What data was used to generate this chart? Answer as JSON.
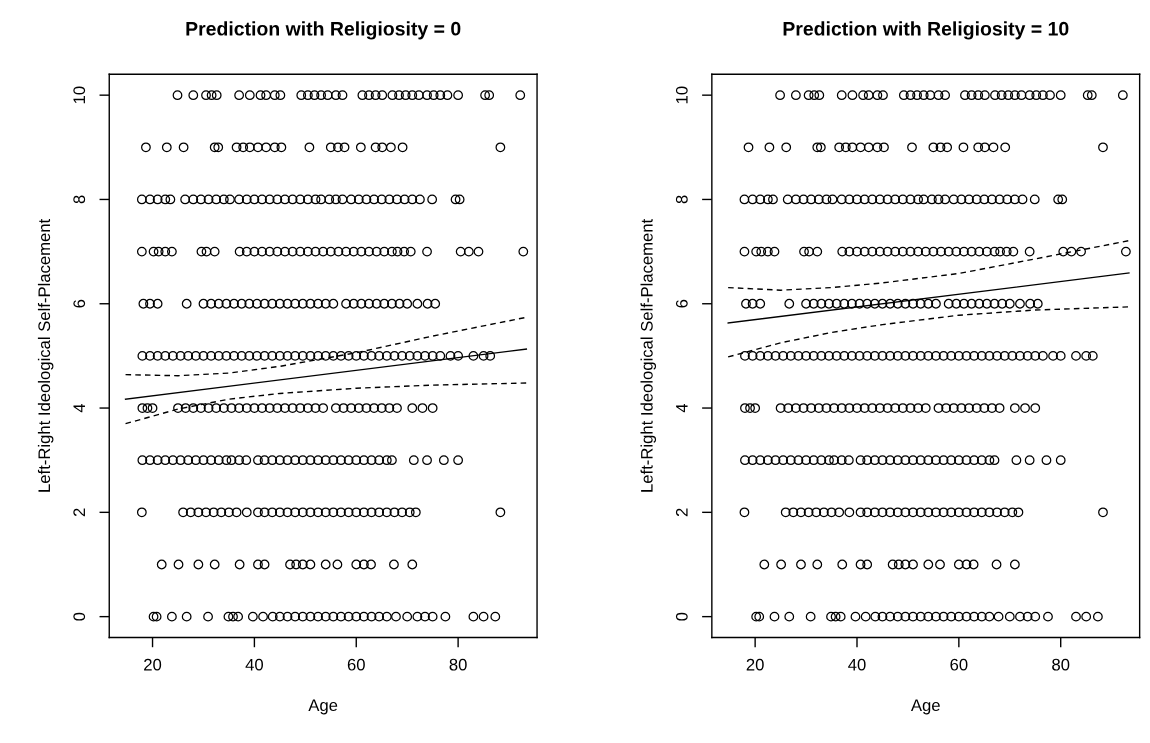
{
  "chart_data": [
    {
      "type": "scatter",
      "title": "Prediction with Religiosity = 0",
      "xlabel": "Age",
      "ylabel": "Left-Right Ideological Self-Placement",
      "xlim": [
        11.5,
        95.5
      ],
      "ylim": [
        -0.4,
        10.4
      ],
      "xticks": [
        20,
        40,
        60,
        80
      ],
      "yticks": [
        0,
        2,
        4,
        6,
        8,
        10
      ],
      "grid": false,
      "legend": false,
      "series": [
        {
          "type": "scatter",
          "color": "#000000",
          "marker": "circle",
          "x": [
            24.9,
            28,
            30.5,
            31.6,
            32.6,
            37,
            39.1,
            41.2,
            42.3,
            44,
            45.1,
            49.2,
            50.5,
            51.8,
            53.1,
            54.4,
            56,
            57.3,
            61.2,
            62.5,
            63.8,
            65.1,
            67.1,
            68.4,
            69.7,
            71,
            72.3,
            73.9,
            75.2,
            76.5,
            77.9,
            80,
            85.3,
            86.1,
            92.2,
            18.7,
            22.8,
            26.1,
            32.2,
            32.9,
            36.5,
            37.8,
            39.1,
            40.7,
            42.3,
            44,
            45.3,
            50.8,
            55,
            56.4,
            57.7,
            60.9,
            63.8,
            65.1,
            66.8,
            69.1,
            88.3,
            17.9,
            19.5,
            21,
            22.5,
            23.5,
            26.4,
            28,
            29.5,
            31,
            32.5,
            34,
            35.2,
            37,
            38.5,
            40,
            41.5,
            43,
            44.5,
            46,
            47.5,
            49,
            50.5,
            52,
            53.1,
            54.7,
            56,
            57.3,
            59,
            60.5,
            62,
            63.5,
            65,
            66.5,
            68,
            69.5,
            71,
            72.5,
            74.9,
            79.5,
            80.3,
            17.9,
            20.2,
            21.2,
            22.5,
            23.8,
            29.6,
            30.6,
            32.2,
            37.1,
            38.5,
            40,
            41.5,
            43,
            44.5,
            46,
            47.5,
            49,
            50.5,
            52,
            53.5,
            55,
            56.5,
            58,
            59.5,
            61,
            62.5,
            64,
            65.5,
            67,
            68.1,
            69.4,
            70.7,
            73.9,
            80.5,
            82.1,
            84,
            92.8,
            18.2,
            19.5,
            21,
            26.7,
            30,
            31.5,
            33,
            34.5,
            36,
            37.5,
            39,
            40.5,
            42,
            43.5,
            45,
            46.5,
            48,
            49.5,
            51,
            52.5,
            54,
            55.5,
            58,
            59.5,
            61,
            62.5,
            64,
            65.5,
            67,
            68.5,
            70,
            72,
            74,
            75.5,
            18,
            19.5,
            21,
            22.5,
            24,
            25.5,
            27,
            28.5,
            30,
            31.5,
            33,
            34.5,
            36,
            37.5,
            39,
            40.5,
            42,
            43.5,
            45,
            46.5,
            48,
            49.5,
            51,
            52.5,
            54,
            55.5,
            57,
            58.5,
            60,
            61.5,
            63,
            64.5,
            66,
            67.5,
            69,
            70.5,
            72,
            73.5,
            75,
            76.5,
            78.5,
            80,
            83,
            85,
            86.3,
            18,
            19,
            20,
            25,
            26.5,
            28,
            29.5,
            31,
            32.5,
            34,
            35.5,
            37,
            38.5,
            40,
            41.5,
            43,
            44.5,
            46,
            47.5,
            49,
            50.5,
            52,
            53.5,
            56,
            57.5,
            59,
            60.5,
            62,
            63.5,
            65,
            66.5,
            68,
            71,
            73,
            75,
            18,
            19.5,
            21,
            22.5,
            24,
            25.5,
            27,
            28.5,
            30,
            31.5,
            33,
            34.5,
            35.5,
            37,
            38.4,
            40.7,
            42,
            43.5,
            45,
            46.5,
            48,
            49.5,
            51,
            52.5,
            54,
            55.5,
            57,
            58.5,
            60,
            61.5,
            63,
            64.5,
            66,
            67,
            71.3,
            73.9,
            77.2,
            80,
            17.9,
            26,
            27.5,
            29,
            30.5,
            32,
            33.5,
            35,
            36.5,
            38.5,
            40.7,
            42,
            43.5,
            45,
            46.5,
            48,
            49.5,
            51,
            52.5,
            54,
            55.5,
            57,
            58.5,
            60,
            61.5,
            63,
            64.5,
            66,
            67.5,
            69,
            70.5,
            71.7,
            88.3,
            21.8,
            25.1,
            29,
            32.2,
            37.1,
            40.7,
            42,
            47,
            48.2,
            49.5,
            51,
            54,
            56.3,
            60,
            61.5,
            62.9,
            67.4,
            71,
            20.2,
            20.8,
            23.8,
            26.7,
            30.9,
            34.9,
            35.8,
            36.8,
            39.7,
            41.7,
            43.6,
            45,
            46.5,
            48,
            49.5,
            51,
            52.5,
            54,
            55.5,
            57,
            58.5,
            60,
            61.5,
            63,
            64.5,
            66,
            67.8,
            70,
            72,
            73.5,
            75,
            77.5,
            83,
            85,
            87.3
          ],
          "values": [
            10,
            10,
            10,
            10,
            10,
            10,
            10,
            10,
            10,
            10,
            10,
            10,
            10,
            10,
            10,
            10,
            10,
            10,
            10,
            10,
            10,
            10,
            10,
            10,
            10,
            10,
            10,
            10,
            10,
            10,
            10,
            10,
            10,
            10,
            10,
            9,
            9,
            9,
            9,
            9,
            9,
            9,
            9,
            9,
            9,
            9,
            9,
            9,
            9,
            9,
            9,
            9,
            9,
            9,
            9,
            9,
            9,
            8,
            8,
            8,
            8,
            8,
            8,
            8,
            8,
            8,
            8,
            8,
            8,
            8,
            8,
            8,
            8,
            8,
            8,
            8,
            8,
            8,
            8,
            8,
            8,
            8,
            8,
            8,
            8,
            8,
            8,
            8,
            8,
            8,
            8,
            8,
            8,
            8,
            8,
            8,
            8,
            7,
            7,
            7,
            7,
            7,
            7,
            7,
            7,
            7,
            7,
            7,
            7,
            7,
            7,
            7,
            7,
            7,
            7,
            7,
            7,
            7,
            7,
            7,
            7,
            7,
            7,
            7,
            7,
            7,
            7,
            7,
            7,
            7,
            7,
            7,
            7,
            7,
            6,
            6,
            6,
            6,
            6,
            6,
            6,
            6,
            6,
            6,
            6,
            6,
            6,
            6,
            6,
            6,
            6,
            6,
            6,
            6,
            6,
            6,
            6,
            6,
            6,
            6,
            6,
            6,
            6,
            6,
            6,
            6,
            6,
            6,
            5,
            5,
            5,
            5,
            5,
            5,
            5,
            5,
            5,
            5,
            5,
            5,
            5,
            5,
            5,
            5,
            5,
            5,
            5,
            5,
            5,
            5,
            5,
            5,
            5,
            5,
            5,
            5,
            5,
            5,
            5,
            5,
            5,
            5,
            5,
            5,
            5,
            5,
            5,
            5,
            5,
            5,
            5,
            5,
            5,
            4,
            4,
            4,
            4,
            4,
            4,
            4,
            4,
            4,
            4,
            4,
            4,
            4,
            4,
            4,
            4,
            4,
            4,
            4,
            4,
            4,
            4,
            4,
            4,
            4,
            4,
            4,
            4,
            4,
            4,
            4,
            4,
            4,
            4,
            4,
            3,
            3,
            3,
            3,
            3,
            3,
            3,
            3,
            3,
            3,
            3,
            3,
            3,
            3,
            3,
            3,
            3,
            3,
            3,
            3,
            3,
            3,
            3,
            3,
            3,
            3,
            3,
            3,
            3,
            3,
            3,
            3,
            3,
            3,
            3,
            3,
            3,
            3,
            2,
            2,
            2,
            2,
            2,
            2,
            2,
            2,
            2,
            2,
            2,
            2,
            2,
            2,
            2,
            2,
            2,
            2,
            2,
            2,
            2,
            2,
            2,
            2,
            2,
            2,
            2,
            2,
            2,
            2,
            2,
            2,
            2,
            1,
            1,
            1,
            1,
            1,
            1,
            1,
            1,
            1,
            1,
            1,
            1,
            1,
            1,
            1,
            1,
            1,
            1,
            0,
            0,
            0,
            0,
            0,
            0,
            0,
            0,
            0,
            0,
            0,
            0,
            0,
            0,
            0,
            0,
            0,
            0,
            0,
            0,
            0,
            0,
            0,
            0,
            0,
            0,
            0,
            0,
            0,
            0,
            0,
            0,
            0,
            0,
            0
          ]
        },
        {
          "type": "line",
          "color": "#000000",
          "line_style": "solid",
          "x": [
            14.7,
            93.4
          ],
          "values": [
            4.17,
            5.13
          ]
        },
        {
          "type": "line",
          "color": "#000000",
          "line_style": "dashed",
          "x": [
            14.7,
            25,
            35,
            45,
            60,
            75,
            93.4
          ],
          "values": [
            4.64,
            4.62,
            4.67,
            4.8,
            5.06,
            5.38,
            5.74
          ]
        },
        {
          "type": "line",
          "color": "#000000",
          "line_style": "dashed",
          "x": [
            14.7,
            25,
            35,
            45,
            60,
            75,
            93.4
          ],
          "values": [
            3.7,
            3.98,
            4.17,
            4.28,
            4.38,
            4.44,
            4.48
          ]
        }
      ]
    },
    {
      "type": "scatter",
      "title": "Prediction with Religiosity = 10",
      "xlabel": "Age",
      "ylabel": "Left-Right Ideological Self-Placement",
      "xlim": [
        11.5,
        95.5
      ],
      "ylim": [
        -0.4,
        10.4
      ],
      "xticks": [
        20,
        40,
        60,
        80
      ],
      "yticks": [
        0,
        2,
        4,
        6,
        8,
        10
      ],
      "grid": false,
      "legend": false,
      "series": [
        {
          "type": "scatter",
          "color": "#000000",
          "marker": "circle",
          "x": [
            24.9,
            28,
            30.5,
            31.6,
            32.6,
            37,
            39.1,
            41.2,
            42.3,
            44,
            45.1,
            49.2,
            50.5,
            51.8,
            53.1,
            54.4,
            56,
            57.3,
            61.2,
            62.5,
            63.8,
            65.1,
            67.1,
            68.4,
            69.7,
            71,
            72.3,
            73.9,
            75.2,
            76.5,
            77.9,
            80,
            85.3,
            86.1,
            92.2,
            18.7,
            22.8,
            26.1,
            32.2,
            32.9,
            36.5,
            37.8,
            39.1,
            40.7,
            42.3,
            44,
            45.3,
            50.8,
            55,
            56.4,
            57.7,
            60.9,
            63.8,
            65.1,
            66.8,
            69.1,
            88.3,
            17.9,
            19.5,
            21,
            22.5,
            23.5,
            26.4,
            28,
            29.5,
            31,
            32.5,
            34,
            35.2,
            37,
            38.5,
            40,
            41.5,
            43,
            44.5,
            46,
            47.5,
            49,
            50.5,
            52,
            53.1,
            54.7,
            56,
            57.3,
            59,
            60.5,
            62,
            63.5,
            65,
            66.5,
            68,
            69.5,
            71,
            72.5,
            74.9,
            79.5,
            80.3,
            17.9,
            20.2,
            21.2,
            22.5,
            23.8,
            29.6,
            30.6,
            32.2,
            37.1,
            38.5,
            40,
            41.5,
            43,
            44.5,
            46,
            47.5,
            49,
            50.5,
            52,
            53.5,
            55,
            56.5,
            58,
            59.5,
            61,
            62.5,
            64,
            65.5,
            67,
            68.1,
            69.4,
            70.7,
            73.9,
            80.5,
            82.1,
            84,
            92.8,
            18.2,
            19.5,
            21,
            26.7,
            30,
            31.5,
            33,
            34.5,
            36,
            37.5,
            39,
            40.5,
            42,
            43.5,
            45,
            46.5,
            48,
            49.5,
            51,
            52.5,
            54,
            55.5,
            58,
            59.5,
            61,
            62.5,
            64,
            65.5,
            67,
            68.5,
            70,
            72,
            74,
            75.5,
            18,
            19.5,
            21,
            22.5,
            24,
            25.5,
            27,
            28.5,
            30,
            31.5,
            33,
            34.5,
            36,
            37.5,
            39,
            40.5,
            42,
            43.5,
            45,
            46.5,
            48,
            49.5,
            51,
            52.5,
            54,
            55.5,
            57,
            58.5,
            60,
            61.5,
            63,
            64.5,
            66,
            67.5,
            69,
            70.5,
            72,
            73.5,
            75,
            76.5,
            78.5,
            80,
            83,
            85,
            86.3,
            18,
            19,
            20,
            25,
            26.5,
            28,
            29.5,
            31,
            32.5,
            34,
            35.5,
            37,
            38.5,
            40,
            41.5,
            43,
            44.5,
            46,
            47.5,
            49,
            50.5,
            52,
            53.5,
            56,
            57.5,
            59,
            60.5,
            62,
            63.5,
            65,
            66.5,
            68,
            71,
            73,
            75,
            18,
            19.5,
            21,
            22.5,
            24,
            25.5,
            27,
            28.5,
            30,
            31.5,
            33,
            34.5,
            35.5,
            37,
            38.4,
            40.7,
            42,
            43.5,
            45,
            46.5,
            48,
            49.5,
            51,
            52.5,
            54,
            55.5,
            57,
            58.5,
            60,
            61.5,
            63,
            64.5,
            66,
            67,
            71.3,
            73.9,
            77.2,
            80,
            17.9,
            26,
            27.5,
            29,
            30.5,
            32,
            33.5,
            35,
            36.5,
            38.5,
            40.7,
            42,
            43.5,
            45,
            46.5,
            48,
            49.5,
            51,
            52.5,
            54,
            55.5,
            57,
            58.5,
            60,
            61.5,
            63,
            64.5,
            66,
            67.5,
            69,
            70.5,
            71.7,
            88.3,
            21.8,
            25.1,
            29,
            32.2,
            37.1,
            40.7,
            42,
            47,
            48.2,
            49.5,
            51,
            54,
            56.3,
            60,
            61.5,
            62.9,
            67.4,
            71,
            20.2,
            20.8,
            23.8,
            26.7,
            30.9,
            34.9,
            35.8,
            36.8,
            39.7,
            41.7,
            43.6,
            45,
            46.5,
            48,
            49.5,
            51,
            52.5,
            54,
            55.5,
            57,
            58.5,
            60,
            61.5,
            63,
            64.5,
            66,
            67.8,
            70,
            72,
            73.5,
            75,
            77.5,
            83,
            85,
            87.3
          ],
          "values": [
            10,
            10,
            10,
            10,
            10,
            10,
            10,
            10,
            10,
            10,
            10,
            10,
            10,
            10,
            10,
            10,
            10,
            10,
            10,
            10,
            10,
            10,
            10,
            10,
            10,
            10,
            10,
            10,
            10,
            10,
            10,
            10,
            10,
            10,
            10,
            9,
            9,
            9,
            9,
            9,
            9,
            9,
            9,
            9,
            9,
            9,
            9,
            9,
            9,
            9,
            9,
            9,
            9,
            9,
            9,
            9,
            9,
            8,
            8,
            8,
            8,
            8,
            8,
            8,
            8,
            8,
            8,
            8,
            8,
            8,
            8,
            8,
            8,
            8,
            8,
            8,
            8,
            8,
            8,
            8,
            8,
            8,
            8,
            8,
            8,
            8,
            8,
            8,
            8,
            8,
            8,
            8,
            8,
            8,
            8,
            8,
            8,
            7,
            7,
            7,
            7,
            7,
            7,
            7,
            7,
            7,
            7,
            7,
            7,
            7,
            7,
            7,
            7,
            7,
            7,
            7,
            7,
            7,
            7,
            7,
            7,
            7,
            7,
            7,
            7,
            7,
            7,
            7,
            7,
            7,
            7,
            7,
            7,
            7,
            6,
            6,
            6,
            6,
            6,
            6,
            6,
            6,
            6,
            6,
            6,
            6,
            6,
            6,
            6,
            6,
            6,
            6,
            6,
            6,
            6,
            6,
            6,
            6,
            6,
            6,
            6,
            6,
            6,
            6,
            6,
            6,
            6,
            6,
            5,
            5,
            5,
            5,
            5,
            5,
            5,
            5,
            5,
            5,
            5,
            5,
            5,
            5,
            5,
            5,
            5,
            5,
            5,
            5,
            5,
            5,
            5,
            5,
            5,
            5,
            5,
            5,
            5,
            5,
            5,
            5,
            5,
            5,
            5,
            5,
            5,
            5,
            5,
            5,
            5,
            5,
            5,
            5,
            5,
            4,
            4,
            4,
            4,
            4,
            4,
            4,
            4,
            4,
            4,
            4,
            4,
            4,
            4,
            4,
            4,
            4,
            4,
            4,
            4,
            4,
            4,
            4,
            4,
            4,
            4,
            4,
            4,
            4,
            4,
            4,
            4,
            4,
            4,
            4,
            3,
            3,
            3,
            3,
            3,
            3,
            3,
            3,
            3,
            3,
            3,
            3,
            3,
            3,
            3,
            3,
            3,
            3,
            3,
            3,
            3,
            3,
            3,
            3,
            3,
            3,
            3,
            3,
            3,
            3,
            3,
            3,
            3,
            3,
            3,
            3,
            3,
            3,
            2,
            2,
            2,
            2,
            2,
            2,
            2,
            2,
            2,
            2,
            2,
            2,
            2,
            2,
            2,
            2,
            2,
            2,
            2,
            2,
            2,
            2,
            2,
            2,
            2,
            2,
            2,
            2,
            2,
            2,
            2,
            2,
            2,
            1,
            1,
            1,
            1,
            1,
            1,
            1,
            1,
            1,
            1,
            1,
            1,
            1,
            1,
            1,
            1,
            1,
            1,
            0,
            0,
            0,
            0,
            0,
            0,
            0,
            0,
            0,
            0,
            0,
            0,
            0,
            0,
            0,
            0,
            0,
            0,
            0,
            0,
            0,
            0,
            0,
            0,
            0,
            0,
            0,
            0,
            0,
            0,
            0,
            0,
            0,
            0,
            0
          ]
        },
        {
          "type": "line",
          "color": "#000000",
          "line_style": "solid",
          "x": [
            14.7,
            93.4
          ],
          "values": [
            5.63,
            6.59
          ]
        },
        {
          "type": "line",
          "color": "#000000",
          "line_style": "dashed",
          "x": [
            14.7,
            25,
            35,
            45,
            60,
            75,
            93.4
          ],
          "values": [
            6.31,
            6.26,
            6.31,
            6.4,
            6.58,
            6.86,
            7.21
          ]
        },
        {
          "type": "line",
          "color": "#000000",
          "line_style": "dashed",
          "x": [
            14.7,
            25,
            35,
            45,
            60,
            75,
            93.4
          ],
          "values": [
            4.98,
            5.25,
            5.45,
            5.6,
            5.78,
            5.88,
            5.94
          ]
        }
      ]
    }
  ]
}
